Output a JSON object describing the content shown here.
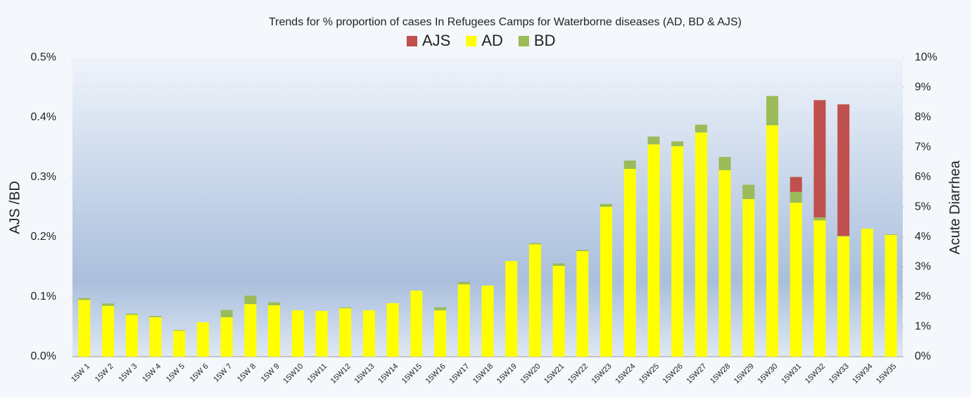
{
  "chart_data": {
    "type": "bar",
    "stacked": true,
    "title": "Trends for % proportion of cases In Refugees Camps for Waterborne diseases (AD, BD & AJS)",
    "y_label": "AJS /BD",
    "y2_label": "Acute Diarrhea",
    "categories": [
      "15W 1",
      "15W 2",
      "15W 3",
      "15W 4",
      "15W 5",
      "15W 6",
      "15W 7",
      "15W 8",
      "15W 9",
      "15W10",
      "15W11",
      "15W12",
      "15W13",
      "15W14",
      "15W15",
      "15W16",
      "15W17",
      "15W18",
      "15W19",
      "15W20",
      "15W21",
      "15W22",
      "15W23",
      "15W24",
      "15W25",
      "15W26",
      "15W27",
      "15W28",
      "15W29",
      "15W30",
      "15W31",
      "15W32",
      "15W33",
      "15W34",
      "15W35"
    ],
    "series": [
      {
        "name": "AD",
        "color": "#ffff00",
        "axis": "y2",
        "values": [
          1.9,
          1.7,
          1.4,
          1.32,
          0.87,
          1.15,
          1.32,
          1.76,
          1.72,
          1.55,
          1.53,
          1.62,
          1.55,
          1.79,
          2.21,
          1.55,
          2.42,
          2.38,
          3.2,
          3.76,
          3.04,
          3.53,
          5.01,
          6.28,
          7.1,
          7.04,
          7.5,
          6.24,
          5.27,
          7.74,
          5.15,
          4.56,
          4.02,
          4.28,
          4.07
        ]
      },
      {
        "name": "BD",
        "color": "#9bbb59",
        "values": [
          0.003,
          0.004,
          0.002,
          0.002,
          0.001,
          0,
          0.012,
          0.014,
          0.005,
          0,
          0,
          0.001,
          0,
          0,
          0,
          0.005,
          0.004,
          0,
          0,
          0.002,
          0.004,
          0.002,
          0.005,
          0.014,
          0.013,
          0.008,
          0.013,
          0.022,
          0.024,
          0.049,
          0.018,
          0.005,
          0.001,
          0,
          0.001
        ]
      },
      {
        "name": "AJS",
        "color": "#c0504d",
        "values": [
          0,
          0,
          0,
          0,
          0,
          0,
          0,
          0,
          0,
          0,
          0,
          0,
          0,
          0,
          0,
          0,
          0,
          0,
          0,
          0,
          0,
          0,
          0,
          0,
          0,
          0,
          0,
          0,
          0,
          0,
          0.025,
          0.196,
          0.22,
          0,
          0
        ]
      }
    ],
    "legend_order": [
      2,
      0,
      1
    ],
    "ylim": [
      0,
      0.5
    ],
    "yticks": [
      {
        "value": 0,
        "label": "0.0%"
      },
      {
        "value": 0.1,
        "label": "0.1%"
      },
      {
        "value": 0.2,
        "label": "0.2%"
      },
      {
        "value": 0.3,
        "label": "0.3%"
      },
      {
        "value": 0.4,
        "label": "0.4%"
      },
      {
        "value": 0.5,
        "label": "0.5%"
      }
    ],
    "y2lim": [
      0,
      10
    ],
    "y2ticks": [
      {
        "value": 0,
        "label": "0%"
      },
      {
        "value": 1,
        "label": "1%"
      },
      {
        "value": 2,
        "label": "2%"
      },
      {
        "value": 3,
        "label": "3%"
      },
      {
        "value": 4,
        "label": "4%"
      },
      {
        "value": 5,
        "label": "5%"
      },
      {
        "value": 6,
        "label": "6%"
      },
      {
        "value": 7,
        "label": "7%"
      },
      {
        "value": 8,
        "label": "8%"
      },
      {
        "value": 9,
        "label": "9%"
      },
      {
        "value": 10,
        "label": "10%"
      }
    ]
  }
}
